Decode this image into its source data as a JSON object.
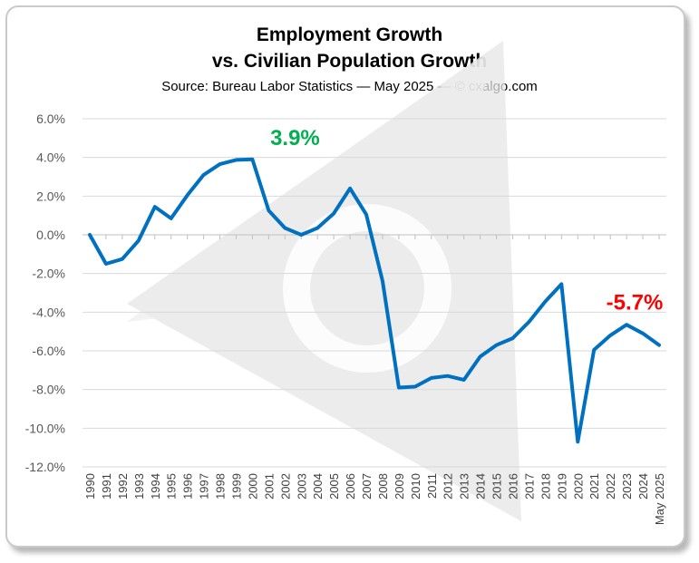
{
  "title_line1": "Employment Growth",
  "title_line2": "vs. Civilian Population Growth",
  "subtitle": "Source: Bureau Labor Statistics — May 2025 — © cxalgo.com",
  "colors": {
    "line": "#0070c0",
    "peak": "#00b050",
    "last": "#ff0000",
    "grid": "#d9d9d9",
    "watermark": "#e6e6e6"
  },
  "chart_data": {
    "type": "line",
    "title": "Employment Growth vs. Civilian Population Growth",
    "categories": [
      "1990",
      "1991",
      "1992",
      "1993",
      "1994",
      "1995",
      "1996",
      "1997",
      "1998",
      "1999",
      "2000",
      "2001",
      "2002",
      "2003",
      "2004",
      "2005",
      "2006",
      "2007",
      "2008",
      "2009",
      "2010",
      "2011",
      "2012",
      "2013",
      "2014",
      "2015",
      "2016",
      "2017",
      "2018",
      "2019",
      "2020",
      "2021",
      "2022",
      "2023",
      "2024",
      "May 2025"
    ],
    "series": [
      {
        "values": [
          0.0,
          -1.5,
          -1.25,
          -0.3,
          1.45,
          0.85,
          2.05,
          3.1,
          3.65,
          3.87,
          3.9,
          1.25,
          0.35,
          0.0,
          0.35,
          1.1,
          2.4,
          1.05,
          -2.4,
          -7.9,
          -7.85,
          -7.4,
          -7.3,
          -7.5,
          -6.3,
          -5.7,
          -5.35,
          -4.5,
          -3.45,
          -2.55,
          -10.7,
          -5.95,
          -5.2,
          -4.65,
          -5.1,
          -5.7
        ]
      }
    ],
    "y_ticks": [
      "6.0%",
      "4.0%",
      "2.0%",
      "0.0%",
      "-2.0%",
      "-4.0%",
      "-6.0%",
      "-8.0%",
      "-10.0%",
      "-12.0%"
    ],
    "ylim": [
      -12,
      6
    ],
    "grid": true,
    "annotations": [
      {
        "text": "3.9%",
        "category": "2000",
        "value": 3.9,
        "color": "#00b050"
      },
      {
        "text": "-5.7%",
        "category": "May 2025",
        "value": -5.7,
        "color": "#ff0000"
      }
    ]
  }
}
